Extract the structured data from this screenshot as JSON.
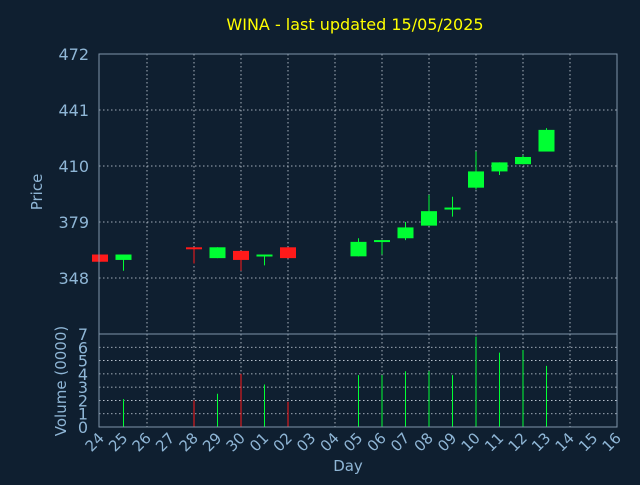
{
  "chart_data": {
    "type": "candlestick",
    "title": "WINA - last updated 15/05/2025",
    "xlabel": "Day",
    "price_panel": {
      "ylabel": "Price",
      "ylim": [
        317,
        472
      ],
      "yticks": [
        348,
        379,
        410,
        441,
        472
      ],
      "grid": true
    },
    "volume_panel": {
      "ylabel": "Volume (0000)",
      "ylim": [
        0,
        7
      ],
      "yticks": [
        0,
        1,
        2,
        3,
        4,
        5,
        6,
        7
      ],
      "grid": true
    },
    "x_ticks": [
      "24",
      "25",
      "26",
      "27",
      "28",
      "29",
      "30",
      "01",
      "02",
      "03",
      "04",
      "05",
      "06",
      "07",
      "08",
      "09",
      "10",
      "11",
      "12",
      "13",
      "14",
      "15",
      "16"
    ],
    "candles": [
      {
        "day": "24",
        "open": 361,
        "close": 357,
        "high": 361,
        "low": 357,
        "volume": 0
      },
      {
        "day": "25",
        "open": 358,
        "close": 361,
        "high": 361,
        "low": 352,
        "volume": 2.1
      },
      {
        "day": "28",
        "open": 365,
        "close": 364,
        "high": 365,
        "low": 356,
        "volume": 2.0
      },
      {
        "day": "29",
        "open": 359,
        "close": 365,
        "high": 365,
        "low": 359,
        "volume": 2.5
      },
      {
        "day": "30",
        "open": 363,
        "close": 358,
        "high": 363,
        "low": 352,
        "volume": 4.0
      },
      {
        "day": "01",
        "open": 360,
        "close": 361,
        "high": 361,
        "low": 355,
        "volume": 3.2
      },
      {
        "day": "02",
        "open": 365,
        "close": 359,
        "high": 365,
        "low": 359,
        "volume": 1.9
      },
      {
        "day": "05",
        "open": 360,
        "close": 368,
        "high": 370,
        "low": 360,
        "volume": 3.9
      },
      {
        "day": "06",
        "open": 368,
        "close": 369,
        "high": 369,
        "low": 361,
        "volume": 3.9
      },
      {
        "day": "07",
        "open": 370,
        "close": 376,
        "high": 379,
        "low": 369,
        "volume": 4.2
      },
      {
        "day": "08",
        "open": 377,
        "close": 385,
        "high": 394,
        "low": 377,
        "volume": 4.2
      },
      {
        "day": "09",
        "open": 386,
        "close": 387,
        "high": 393,
        "low": 382,
        "volume": 3.9
      },
      {
        "day": "10",
        "open": 398,
        "close": 407,
        "high": 418,
        "low": 397,
        "volume": 6.8
      },
      {
        "day": "11",
        "open": 407,
        "close": 412,
        "high": 412,
        "low": 405,
        "volume": 5.6
      },
      {
        "day": "12",
        "open": 411,
        "close": 415,
        "high": 416,
        "low": 411,
        "volume": 5.8
      },
      {
        "day": "13",
        "open": 418,
        "close": 430,
        "high": 431,
        "low": 418,
        "volume": 4.6
      }
    ],
    "colors": {
      "background": "#0f1f30",
      "title": "#ffff00",
      "axis_text": "#8fb6d6",
      "frame": "#7f94aa",
      "grid": "#cfd8e2",
      "up": "#00ff33",
      "down": "#ff1a1a"
    }
  }
}
